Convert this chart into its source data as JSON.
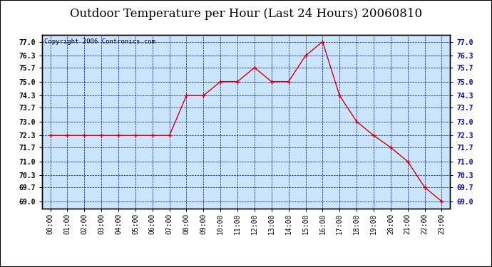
{
  "title": "Outdoor Temperature per Hour (Last 24 Hours) 20060810",
  "copyright_text": "Copyright 2006 Contronics.com",
  "hours": [
    0,
    1,
    2,
    3,
    4,
    5,
    6,
    7,
    8,
    9,
    10,
    11,
    12,
    13,
    14,
    15,
    16,
    17,
    18,
    19,
    20,
    21,
    22,
    23
  ],
  "temps": [
    72.3,
    72.3,
    72.3,
    72.3,
    72.3,
    72.3,
    72.3,
    72.3,
    74.3,
    74.3,
    75.0,
    75.0,
    75.7,
    75.0,
    75.0,
    76.3,
    77.0,
    74.3,
    73.0,
    72.3,
    71.7,
    71.0,
    69.7,
    69.0
  ],
  "hour_labels": [
    "00:00",
    "01:00",
    "02:00",
    "03:00",
    "04:00",
    "05:00",
    "06:00",
    "07:00",
    "08:00",
    "09:00",
    "10:00",
    "11:00",
    "12:00",
    "13:00",
    "14:00",
    "15:00",
    "16:00",
    "17:00",
    "18:00",
    "19:00",
    "20:00",
    "21:00",
    "22:00",
    "23:00"
  ],
  "y_ticks": [
    69.0,
    69.7,
    70.3,
    71.0,
    71.7,
    72.3,
    73.0,
    73.7,
    74.3,
    75.0,
    75.7,
    76.3,
    77.0
  ],
  "ylim": [
    68.65,
    77.35
  ],
  "line_color": "#cc0000",
  "marker_color": "#cc0000",
  "background_color": "#cce5ff",
  "grid_color": "#0000cc",
  "border_color": "#000000",
  "title_fontsize": 12,
  "copyright_fontsize": 6.5,
  "tick_label_fontsize": 7,
  "right_tick_color": "#0000cc"
}
